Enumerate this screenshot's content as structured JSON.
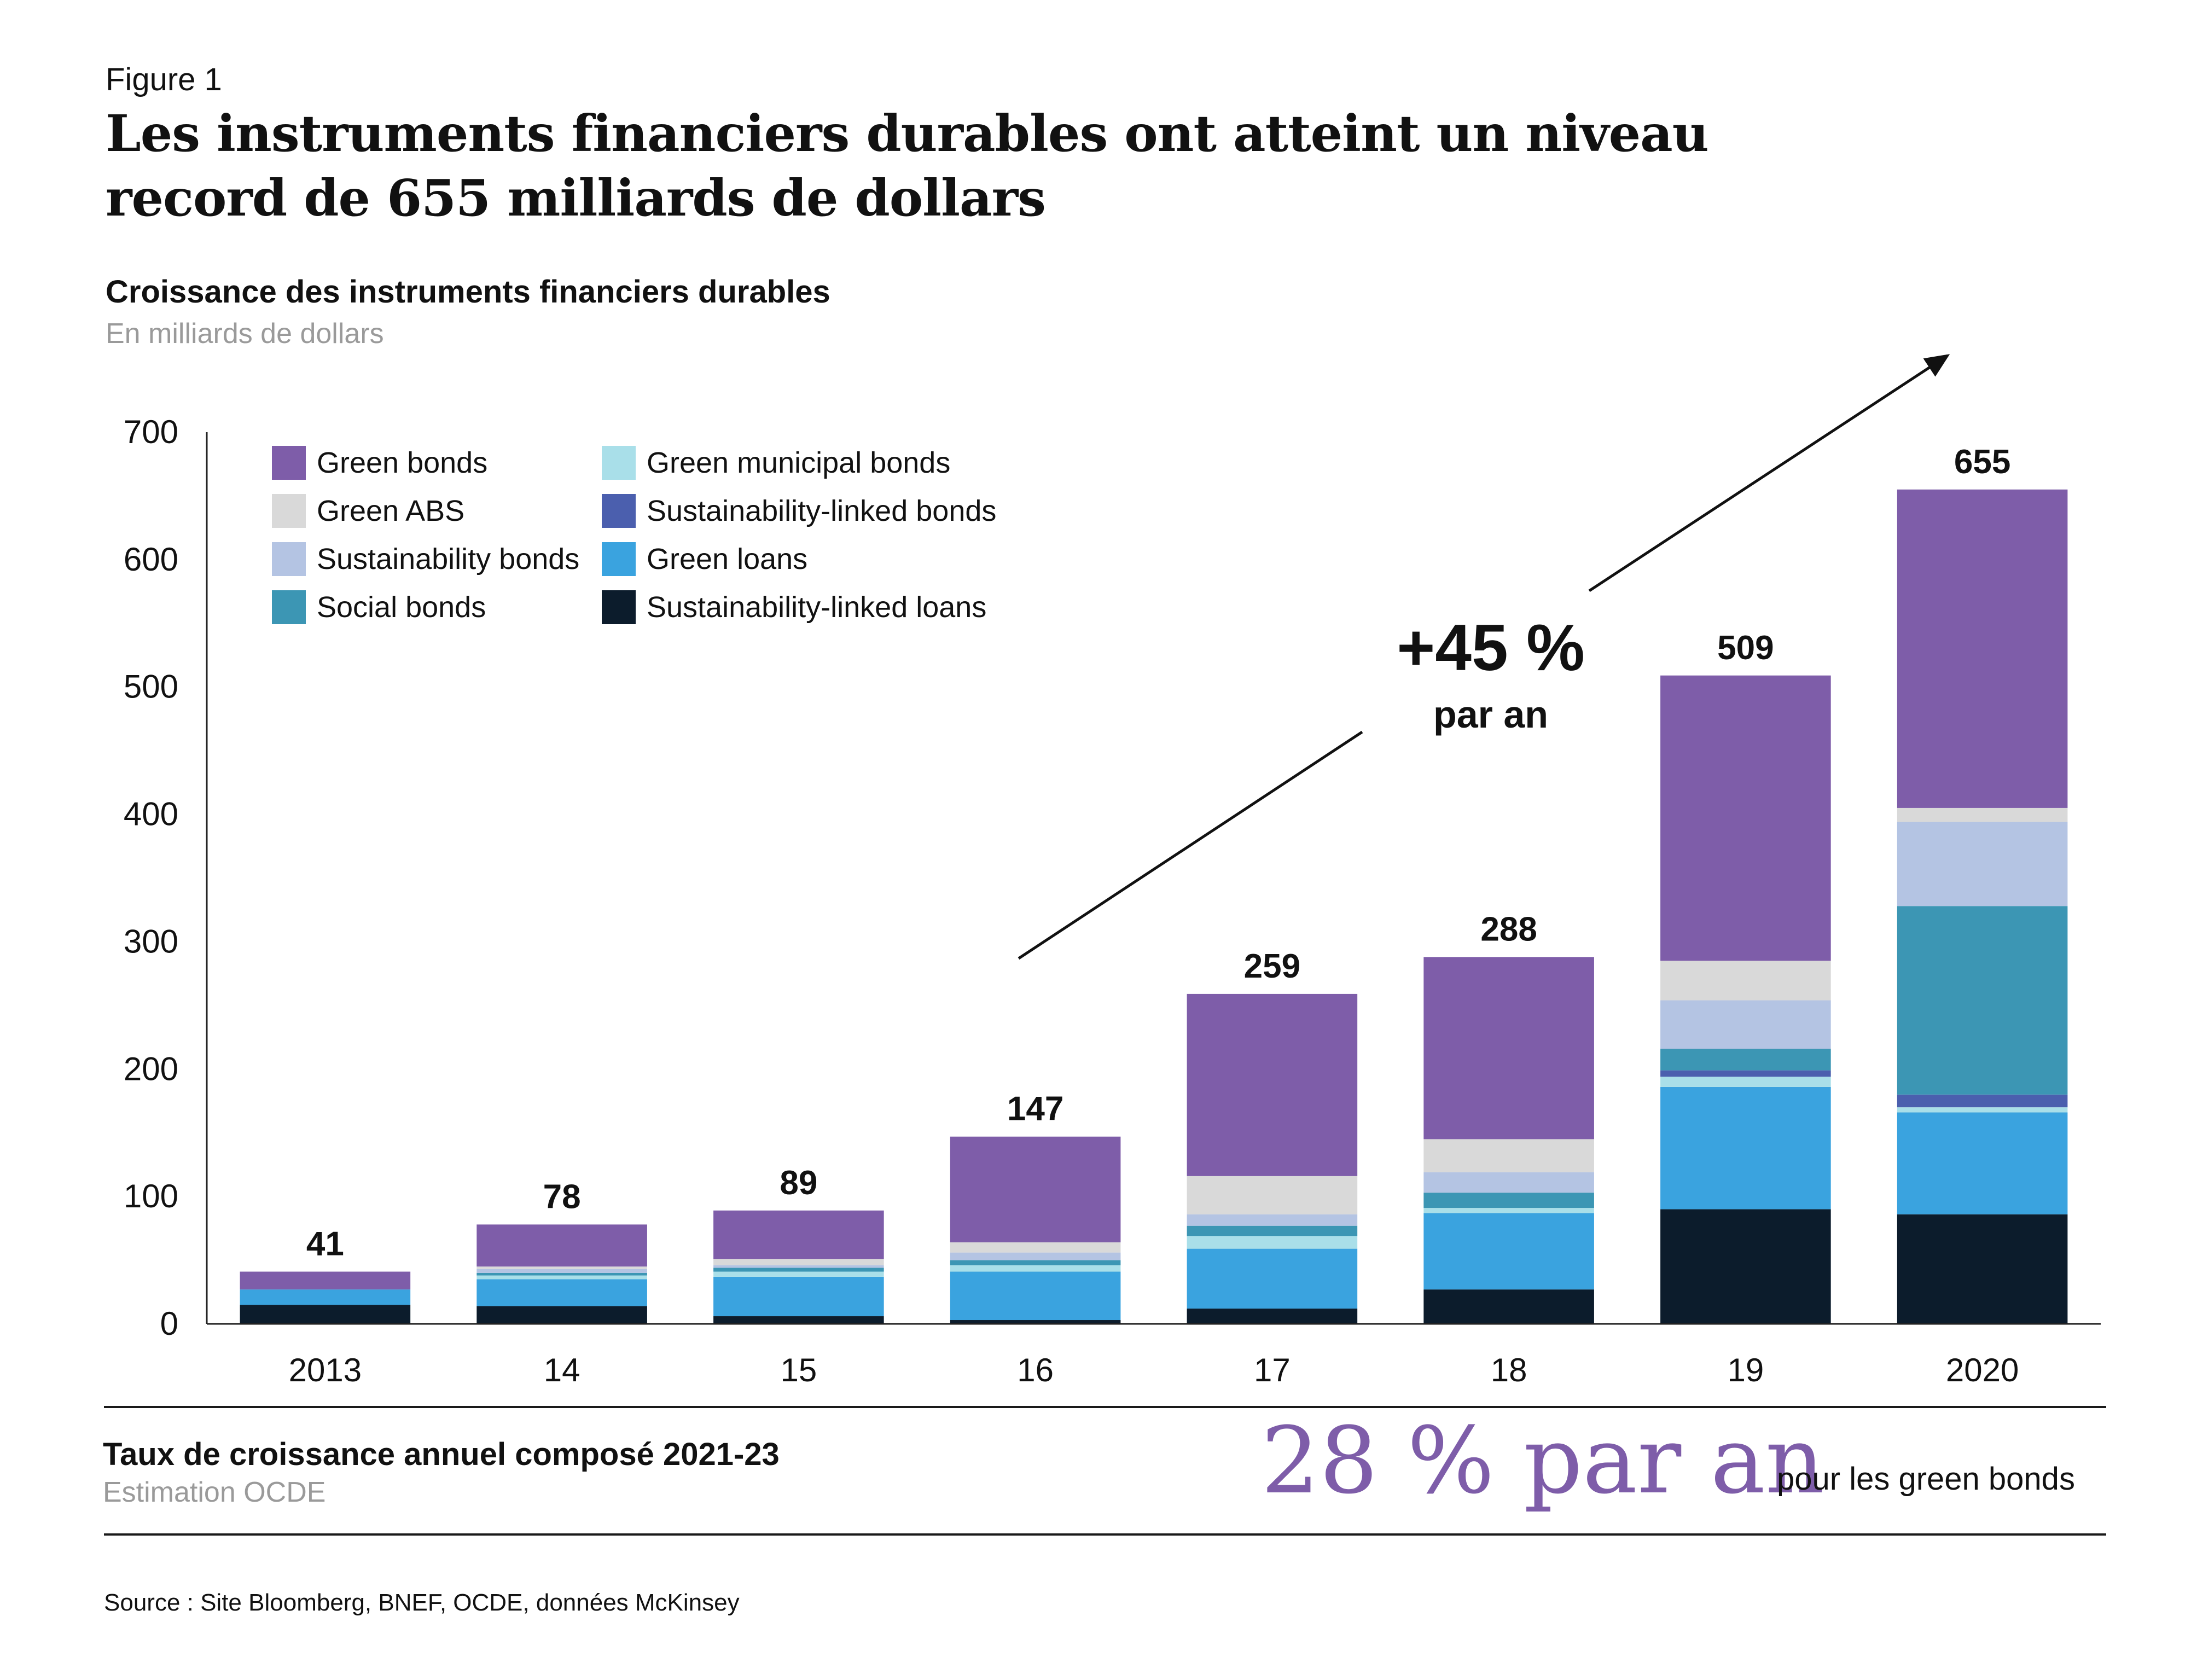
{
  "figure_label": "Figure 1",
  "title": "Les instruments financiers durables ont atteint un niveau record de 655 milliards de dollars",
  "chart_data": {
    "type": "bar",
    "stacked": true,
    "title": "Croissance des instruments financiers durables",
    "subtitle": "En milliards de dollars",
    "xlabel": "",
    "ylabel": "",
    "ylim": [
      0,
      700
    ],
    "yticks": [
      0,
      100,
      200,
      300,
      400,
      500,
      600,
      700
    ],
    "grid": false,
    "legend_position": "top-left",
    "categories": [
      "2013",
      "14",
      "15",
      "16",
      "17",
      "18",
      "19",
      "2020"
    ],
    "totals": [
      41,
      78,
      89,
      147,
      259,
      288,
      509,
      655
    ],
    "series": [
      {
        "name": "Sustainability-linked loans",
        "color": "#0c1c2c",
        "values": [
          15,
          14,
          6,
          3,
          12,
          27,
          90,
          86
        ]
      },
      {
        "name": "Green loans",
        "color": "#3aa3df",
        "values": [
          12,
          21,
          31,
          38,
          47,
          60,
          96,
          80
        ]
      },
      {
        "name": "Green municipal bonds",
        "color": "#a9dfe9",
        "values": [
          0,
          3,
          4,
          5,
          10,
          4,
          8,
          4
        ]
      },
      {
        "name": "Sustainability-linked bonds",
        "color": "#4b5fae",
        "values": [
          0,
          0,
          0,
          0,
          0,
          0,
          5,
          10
        ]
      },
      {
        "name": "Social bonds",
        "color": "#3c96b4",
        "values": [
          0,
          2,
          3,
          4,
          8,
          12,
          17,
          148
        ]
      },
      {
        "name": "Sustainability bonds",
        "color": "#b4c4e3",
        "values": [
          0,
          3,
          2,
          6,
          9,
          16,
          38,
          66
        ]
      },
      {
        "name": "Green ABS",
        "color": "#d9d9d9",
        "values": [
          0,
          2,
          5,
          8,
          30,
          26,
          31,
          11
        ]
      },
      {
        "name": "Green bonds",
        "color": "#7e5da9",
        "values": [
          14,
          33,
          38,
          83,
          143,
          143,
          224,
          250
        ]
      }
    ],
    "legend_order": [
      "Green bonds",
      "Green ABS",
      "Sustainability bonds",
      "Social bonds",
      "Green municipal bonds",
      "Sustainability-linked bonds",
      "Green loans",
      "Sustainability-linked loans"
    ],
    "annotation": {
      "headline": "+45 %",
      "subtext": "par an"
    }
  },
  "cagr": {
    "label": "Taux de croissance annuel composé 2021-23",
    "sublabel": "Estimation OCDE",
    "value": "28 % par an",
    "suffix": "pour les green bonds"
  },
  "source": "Source : Site Bloomberg, BNEF, OCDE, données McKinsey"
}
